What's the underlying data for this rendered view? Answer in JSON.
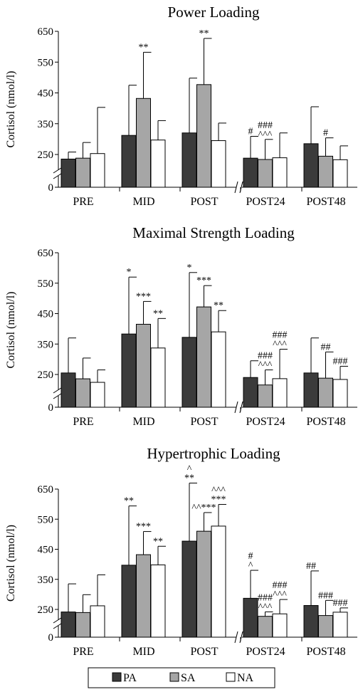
{
  "chart_data": [
    {
      "type": "bar",
      "title": "Power Loading",
      "ylabel": "Cortisol (nmol/l)",
      "ylim": [
        0,
        650
      ],
      "yticks": [
        0,
        250,
        350,
        450,
        550,
        650
      ],
      "axis_break": true,
      "categories": [
        "PRE",
        "MID",
        "POST",
        "POST24",
        "POST48"
      ],
      "series": [
        {
          "name": "PA",
          "values": [
            215,
            312,
            320,
            222,
            285
          ],
          "sd": [
            43,
            163,
            178,
            87,
            120
          ]
        },
        {
          "name": "SA",
          "values": [
            222,
            432,
            477,
            212,
            237
          ],
          "sd": [
            67,
            150,
            150,
            87,
            67
          ]
        },
        {
          "name": "NA",
          "values": [
            253,
            297,
            295,
            225,
            210
          ],
          "sd": [
            150,
            63,
            57,
            95,
            68
          ]
        }
      ],
      "annotations": [
        [
          "",
          "",
          ""
        ],
        [
          "",
          "**",
          ""
        ],
        [
          "",
          "**",
          ""
        ],
        [
          "#",
          "###\n^^^",
          ""
        ],
        [
          "",
          "#",
          ""
        ]
      ]
    },
    {
      "type": "bar",
      "title": "Maximal Strength Loading",
      "ylabel": "Cortisol (nmol/l)",
      "ylim": [
        0,
        650
      ],
      "yticks": [
        0,
        250,
        350,
        450,
        550,
        650
      ],
      "axis_break": true,
      "categories": [
        "PRE",
        "MID",
        "POST",
        "POST24",
        "POST48"
      ],
      "series": [
        {
          "name": "PA",
          "values": [
            255,
            383,
            372,
            227,
            255
          ],
          "sd": [
            115,
            187,
            213,
            68,
            115
          ]
        },
        {
          "name": "SA",
          "values": [
            217,
            415,
            472,
            170,
            222
          ],
          "sd": [
            87,
            75,
            70,
            95,
            102
          ]
        },
        {
          "name": "NA",
          "values": [
            190,
            337,
            390,
            218,
            212
          ],
          "sd": [
            75,
            97,
            70,
            115,
            65
          ]
        }
      ],
      "annotations": [
        [
          "",
          "",
          ""
        ],
        [
          "*",
          "***",
          "**"
        ],
        [
          "*",
          "***",
          "**"
        ],
        [
          "",
          "###\n^^^",
          "###\n^^^"
        ],
        [
          "",
          "##",
          "###"
        ]
      ]
    },
    {
      "type": "bar",
      "title": "Hypertrophic Loading",
      "ylabel": "Cortisol (nmol/l)",
      "ylim": [
        0,
        650
      ],
      "yticks": [
        0,
        250,
        350,
        450,
        550,
        650
      ],
      "axis_break": true,
      "categories": [
        "PRE",
        "MID",
        "POST",
        "POST24",
        "POST48"
      ],
      "series": [
        {
          "name": "PA",
          "values": [
            227,
            397,
            477,
            287,
            263
          ],
          "sd": [
            108,
            197,
            193,
            93,
            115
          ]
        },
        {
          "name": "SA",
          "values": [
            222,
            432,
            510,
            188,
            195
          ],
          "sd": [
            77,
            77,
            62,
            40,
            85
          ]
        },
        {
          "name": "NA",
          "values": [
            262,
            398,
            527,
            210,
            225
          ],
          "sd": [
            103,
            62,
            72,
            73,
            30
          ]
        }
      ],
      "annotations": [
        [
          "",
          "",
          ""
        ],
        [
          "**",
          "***",
          "**"
        ],
        [
          "^\n**",
          "^^***",
          "^^^\n***"
        ],
        [
          "#\n^",
          "###\n^^^",
          "###\n^^^"
        ],
        [
          "##",
          "###",
          "###"
        ]
      ]
    }
  ],
  "legend": {
    "items": [
      {
        "name": "PA",
        "color": "#3b3b3b"
      },
      {
        "name": "SA",
        "color": "#a6a6a6"
      },
      {
        "name": "NA",
        "color": "#ffffff"
      }
    ]
  },
  "colors": {
    "PA": "#3b3b3b",
    "SA": "#a6a6a6",
    "NA": "#ffffff",
    "border": "#000000"
  }
}
